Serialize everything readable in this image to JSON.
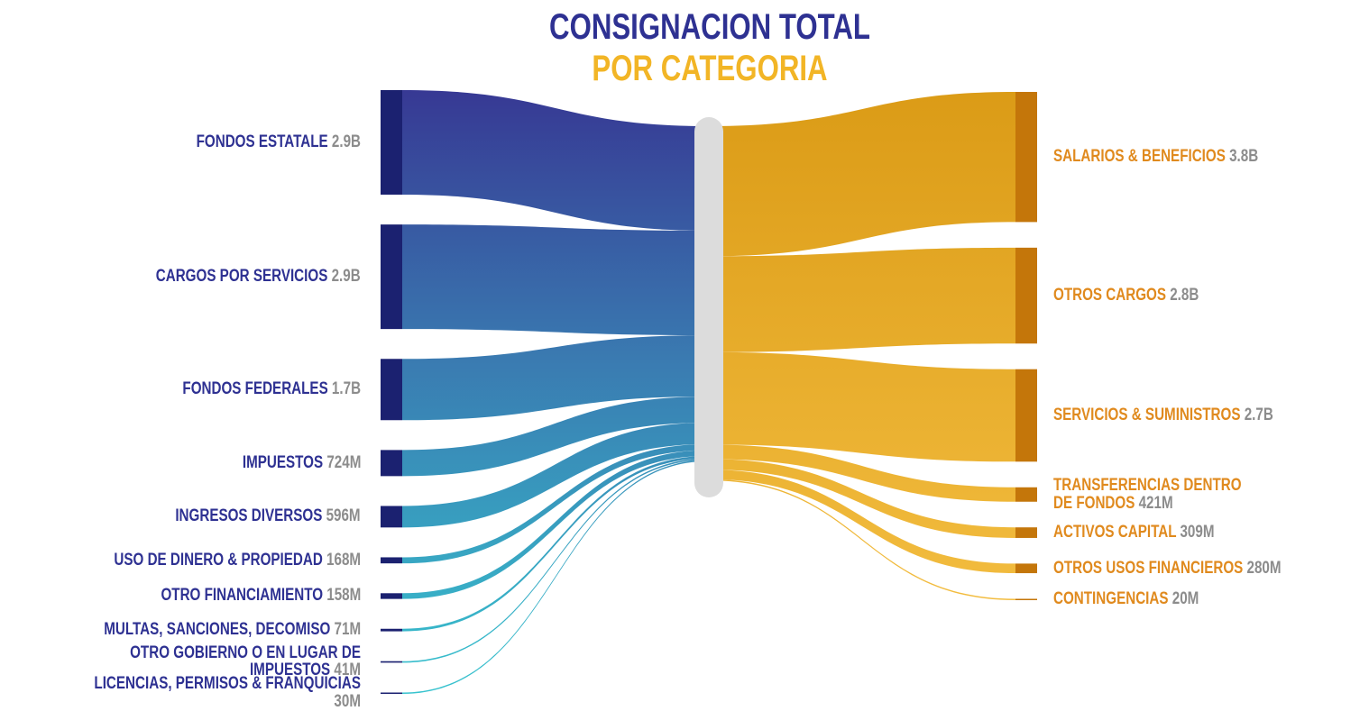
{
  "chart_data": {
    "type": "sankey",
    "title": "CONSIGNACION TOTAL",
    "subtitle": "POR CATEGORIA",
    "sources": {
      "color": "#2e3192",
      "categories": [
        "FONDOS ESTATALE",
        "CARGOS POR SERVICIOS",
        "FONDOS FEDERALES",
        "IMPUESTOS",
        "INGRESOS DIVERSOS",
        "USO DE DINERO & PROPIEDAD",
        "OTRO FINANCIAMIENTO",
        "MULTAS, SANCIONES, DECOMISO",
        "OTRO GOBIERNO O EN LUGAR DE IMPUESTOS",
        "LICENCIAS, PERMISOS & FRANQUICIAS"
      ],
      "values": [
        2900000000,
        2900000000,
        1700000000,
        724000000,
        596000000,
        168000000,
        158000000,
        71000000,
        41000000,
        30000000
      ],
      "value_labels": [
        "2.9B",
        "2.9B",
        "1.7B",
        "724M",
        "596M",
        "168M",
        "158M",
        "71M",
        "41M",
        "30M"
      ]
    },
    "targets": {
      "color": "#e08a1e",
      "categories": [
        "SALARIOS & BENEFICIOS",
        "OTROS CARGOS",
        "SERVICIOS & SUMINISTROS",
        "TRANSFERENCIAS DENTRO\nDE FONDOS",
        "ACTIVOS CAPITAL",
        "OTROS USOS FINANCIEROS",
        "CONTINGENCIAS"
      ],
      "values": [
        3800000000,
        2800000000,
        2700000000,
        421000000,
        309000000,
        280000000,
        20000000
      ],
      "value_labels": [
        "3.8B",
        "2.8B",
        "2.7B",
        "421M",
        "309M",
        "280M",
        "20M"
      ]
    }
  }
}
